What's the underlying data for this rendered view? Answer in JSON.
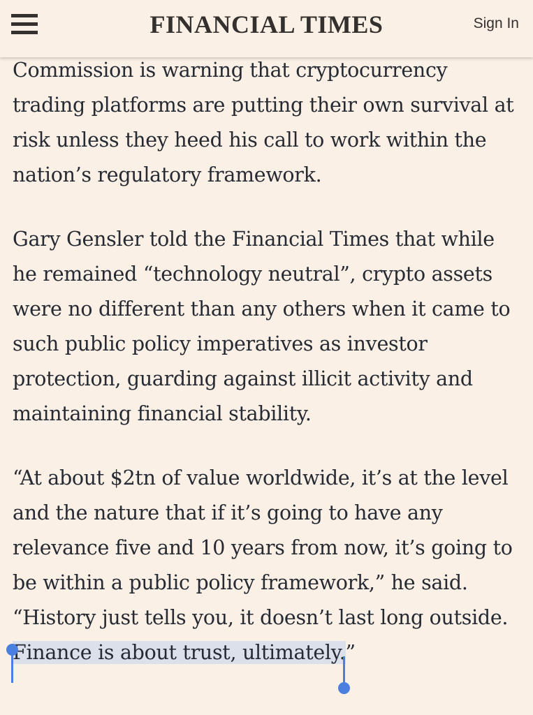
{
  "header": {
    "brand": "FINANCIAL TIMES",
    "sign_in_label": "Sign In",
    "menu_icon": "hamburger-menu-icon"
  },
  "article": {
    "paragraphs": [
      "The chair of the US Securities and Exchange Commission is warning that cryptocurrency trading platforms are putting their own survival at risk unless they heed his call to work within the nation’s regulatory framework.",
      "Gary Gensler told the Financial Times that while he remained “technology neutral”, crypto assets were no different than any others when it came to such public policy imperatives as investor protection, guarding against illicit activity and maintaining financial stability.",
      "“At about $2tn of value worldwide, it’s at the level and the nature that if it’s going to have any relevance five and 10 years from now, it’s going to be within a public policy framework,” he said. “History just tells you, it doesn’t last long outside. "
    ],
    "selected_text": "Finance is about trust, ultimately.",
    "trailing_text": "”"
  },
  "colors": {
    "background": "#FAF0E6",
    "text": "#262A33",
    "selection_highlight": "#DCE0EA",
    "selection_handle": "#4A7FE0"
  }
}
